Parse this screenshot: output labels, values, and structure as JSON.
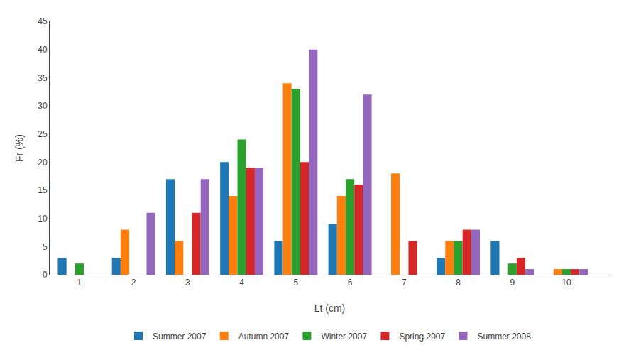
{
  "chart_data": {
    "type": "bar",
    "x": [
      1,
      2,
      3,
      4,
      5,
      6,
      7,
      8,
      9,
      10
    ],
    "series": [
      {
        "name": "Summer 2007",
        "values": [
          3,
          3,
          17,
          20,
          6,
          9,
          0,
          3,
          6,
          0
        ]
      },
      {
        "name": "Autumn 2007",
        "values": [
          0,
          8,
          6,
          14,
          34,
          14,
          18,
          6,
          0,
          1
        ]
      },
      {
        "name": "Winter 2007",
        "values": [
          2,
          0,
          0,
          24,
          33,
          17,
          0,
          6,
          2,
          1
        ]
      },
      {
        "name": "Spring 2007",
        "values": [
          0,
          0,
          11,
          19,
          20,
          16,
          6,
          8,
          3,
          1
        ]
      },
      {
        "name": "Summer 2008",
        "values": [
          0,
          11,
          17,
          19,
          40,
          32,
          0,
          8,
          1,
          1
        ]
      }
    ],
    "xlabel": "Lt (cm)",
    "ylabel": "Fr (%)",
    "xlim": [
      0.45,
      10.8
    ],
    "xticks": [
      1,
      2,
      3,
      4,
      5,
      6,
      7,
      8,
      9,
      10
    ],
    "ylim": [
      0,
      45
    ],
    "yticks": [
      0,
      5,
      10,
      15,
      20,
      25,
      30,
      35,
      40,
      45
    ],
    "grid": false,
    "legend": "bottom"
  }
}
